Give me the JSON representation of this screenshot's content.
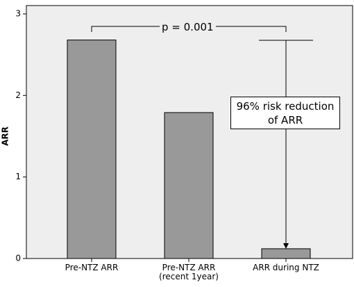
{
  "chart_data": {
    "type": "bar",
    "y_label": "ARR",
    "categories": [
      "Pre-NTZ ARR",
      "Pre-NTZ ARR\n(recent 1year)",
      "ARR during NTZ"
    ],
    "values": [
      2.68,
      1.79,
      0.12
    ],
    "color": "#999999",
    "ylim": [
      0,
      3
    ],
    "yticks": [
      0,
      1,
      2,
      3
    ],
    "annotations": [
      "p = 0.001",
      "96% risk reduction\nof ARR"
    ]
  }
}
